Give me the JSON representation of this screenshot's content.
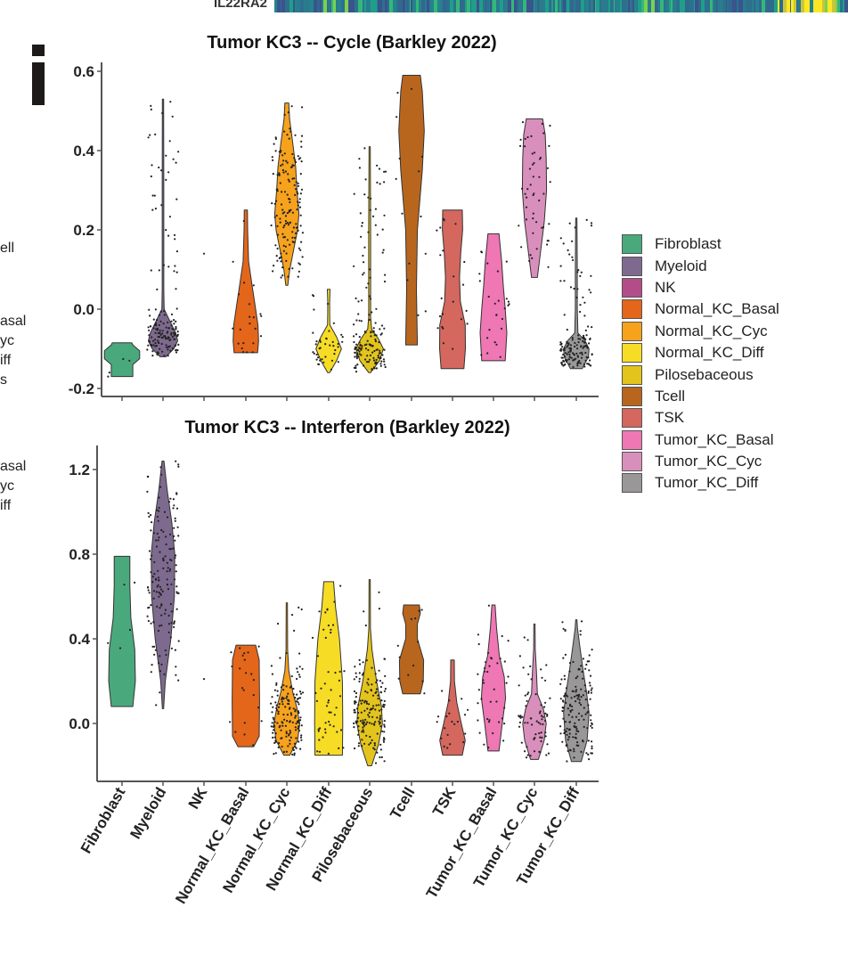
{
  "panel_label": "i",
  "heatmap_strip": {
    "row_label": "IL22RA2"
  },
  "left_cutoff_labels": [
    "ell",
    "asal",
    "yc",
    "iff",
    "s",
    "asal",
    "yc",
    "iff"
  ],
  "legend": {
    "items": [
      {
        "label": "Fibroblast",
        "color": "#4aa97c"
      },
      {
        "label": "Myeloid",
        "color": "#7e6a8e"
      },
      {
        "label": "NK",
        "color": "#b24d8a"
      },
      {
        "label": "Normal_KC_Basal",
        "color": "#e4661a"
      },
      {
        "label": "Normal_KC_Cyc",
        "color": "#f7a21c"
      },
      {
        "label": "Normal_KC_Diff",
        "color": "#f7dc25"
      },
      {
        "label": "Pilosebaceous",
        "color": "#e3c41c"
      },
      {
        "label": "Tcell",
        "color": "#b8661e"
      },
      {
        "label": "TSK",
        "color": "#d4675e"
      },
      {
        "label": "Tumor_KC_Basal",
        "color": "#ee77b4"
      },
      {
        "label": "Tumor_KC_Cyc",
        "color": "#d98fbb"
      },
      {
        "label": "Tumor_KC_Diff",
        "color": "#999797"
      }
    ]
  },
  "chart_data": [
    {
      "type": "violin",
      "title": "Tumor KC3 -- Cycle (Barkley 2022)",
      "xlabel": "",
      "ylabel": "",
      "ylim": [
        -0.21,
        0.63
      ],
      "yticks": [
        -0.2,
        0.0,
        0.2,
        0.4,
        0.6
      ],
      "ytick_labels": [
        "-0.2",
        "0.0",
        "0.2",
        "0.4",
        "0.6"
      ],
      "categories": [
        "Fibroblast",
        "Myeloid",
        "NK",
        "Normal_KC_Basal",
        "Normal_KC_Cyc",
        "Normal_KC_Diff",
        "Pilosebaceous",
        "Tcell",
        "TSK",
        "Tumor_KC_Basal",
        "Tumor_KC_Cyc",
        "Tumor_KC_Diff"
      ],
      "series": [
        {
          "name": "Fibroblast",
          "min": -0.17,
          "max": -0.085,
          "n_points": 4,
          "profile": [
            [
              -0.17,
              0.55
            ],
            [
              -0.14,
              0.55
            ],
            [
              -0.125,
              0.9
            ],
            [
              -0.105,
              0.9
            ],
            [
              -0.09,
              0.55
            ],
            [
              -0.085,
              0.5
            ]
          ]
        },
        {
          "name": "Myeloid",
          "min": -0.12,
          "max": 0.53,
          "n_points": 300,
          "profile": [
            [
              -0.12,
              0.15
            ],
            [
              -0.1,
              0.55
            ],
            [
              -0.08,
              0.75
            ],
            [
              -0.06,
              0.65
            ],
            [
              -0.03,
              0.35
            ],
            [
              0.0,
              0.06
            ],
            [
              0.05,
              0.04
            ],
            [
              0.3,
              0.04
            ],
            [
              0.53,
              0.03
            ]
          ]
        },
        {
          "name": "NK",
          "min": 0.14,
          "max": 0.14,
          "n_points": 1,
          "profile": []
        },
        {
          "name": "Normal_KC_Basal",
          "min": -0.11,
          "max": 0.25,
          "n_points": 22,
          "profile": [
            [
              -0.11,
              0.6
            ],
            [
              -0.08,
              0.65
            ],
            [
              -0.04,
              0.62
            ],
            [
              0.0,
              0.5
            ],
            [
              0.06,
              0.32
            ],
            [
              0.12,
              0.14
            ],
            [
              0.2,
              0.09
            ],
            [
              0.25,
              0.08
            ]
          ]
        },
        {
          "name": "Normal_KC_Cyc",
          "min": 0.06,
          "max": 0.52,
          "n_points": 280,
          "profile": [
            [
              0.06,
              0.05
            ],
            [
              0.1,
              0.15
            ],
            [
              0.15,
              0.35
            ],
            [
              0.2,
              0.55
            ],
            [
              0.24,
              0.62
            ],
            [
              0.3,
              0.52
            ],
            [
              0.36,
              0.45
            ],
            [
              0.42,
              0.3
            ],
            [
              0.48,
              0.14
            ],
            [
              0.52,
              0.1
            ]
          ]
        },
        {
          "name": "Normal_KC_Diff",
          "min": -0.16,
          "max": 0.05,
          "n_points": 40,
          "profile": [
            [
              -0.16,
              0.05
            ],
            [
              -0.13,
              0.4
            ],
            [
              -0.1,
              0.65
            ],
            [
              -0.07,
              0.4
            ],
            [
              -0.04,
              0.06
            ],
            [
              -0.01,
              0.05
            ],
            [
              0.02,
              0.05
            ],
            [
              0.05,
              0.07
            ]
          ]
        },
        {
          "name": "Pilosebaceous",
          "min": -0.16,
          "max": 0.41,
          "n_points": 250,
          "profile": [
            [
              -0.16,
              0.05
            ],
            [
              -0.13,
              0.5
            ],
            [
              -0.1,
              0.7
            ],
            [
              -0.075,
              0.45
            ],
            [
              -0.05,
              0.1
            ],
            [
              -0.02,
              0.05
            ],
            [
              0.2,
              0.05
            ],
            [
              0.41,
              0.03
            ]
          ]
        },
        {
          "name": "Tcell",
          "min": -0.09,
          "max": 0.59,
          "n_points": 14,
          "profile": [
            [
              -0.09,
              0.3
            ],
            [
              0.05,
              0.25
            ],
            [
              0.2,
              0.3
            ],
            [
              0.35,
              0.55
            ],
            [
              0.45,
              0.65
            ],
            [
              0.55,
              0.55
            ],
            [
              0.59,
              0.45
            ]
          ]
        },
        {
          "name": "TSK",
          "min": -0.15,
          "max": 0.25,
          "n_points": 22,
          "profile": [
            [
              -0.15,
              0.58
            ],
            [
              -0.1,
              0.66
            ],
            [
              -0.04,
              0.65
            ],
            [
              0.02,
              0.4
            ],
            [
              0.08,
              0.36
            ],
            [
              0.14,
              0.42
            ],
            [
              0.2,
              0.52
            ],
            [
              0.25,
              0.5
            ]
          ]
        },
        {
          "name": "Tumor_KC_Basal",
          "min": -0.13,
          "max": 0.19,
          "n_points": 26,
          "profile": [
            [
              -0.13,
              0.6
            ],
            [
              -0.06,
              0.68
            ],
            [
              0.0,
              0.6
            ],
            [
              0.06,
              0.5
            ],
            [
              0.12,
              0.42
            ],
            [
              0.19,
              0.28
            ]
          ]
        },
        {
          "name": "Tumor_KC_Cyc",
          "min": 0.08,
          "max": 0.48,
          "n_points": 50,
          "profile": [
            [
              0.08,
              0.15
            ],
            [
              0.14,
              0.3
            ],
            [
              0.22,
              0.5
            ],
            [
              0.3,
              0.62
            ],
            [
              0.38,
              0.6
            ],
            [
              0.44,
              0.55
            ],
            [
              0.48,
              0.42
            ]
          ]
        },
        {
          "name": "Tumor_KC_Diff",
          "min": -0.15,
          "max": 0.23,
          "n_points": 150,
          "profile": [
            [
              -0.15,
              0.3
            ],
            [
              -0.12,
              0.62
            ],
            [
              -0.1,
              0.65
            ],
            [
              -0.08,
              0.45
            ],
            [
              -0.06,
              0.08
            ],
            [
              0.0,
              0.05
            ],
            [
              0.1,
              0.05
            ],
            [
              0.23,
              0.03
            ]
          ]
        }
      ]
    },
    {
      "type": "violin",
      "title": "Tumor KC3 -- Interferon (Barkley 2022)",
      "xlabel": "",
      "ylabel": "",
      "ylim": [
        -0.25,
        1.3
      ],
      "yticks": [
        0.0,
        0.4,
        0.8,
        1.2
      ],
      "ytick_labels": [
        "0.0",
        "0.4",
        "0.8",
        "1.2"
      ],
      "categories": [
        "Fibroblast",
        "Myeloid",
        "NK",
        "Normal_KC_Basal",
        "Normal_KC_Cyc",
        "Normal_KC_Diff",
        "Pilosebaceous",
        "Tcell",
        "TSK",
        "Tumor_KC_Basal",
        "Tumor_KC_Cyc",
        "Tumor_KC_Diff"
      ],
      "series": [
        {
          "name": "Fibroblast",
          "min": 0.08,
          "max": 0.79,
          "n_points": 5,
          "profile": [
            [
              0.08,
              0.55
            ],
            [
              0.2,
              0.68
            ],
            [
              0.35,
              0.65
            ],
            [
              0.5,
              0.45
            ],
            [
              0.65,
              0.4
            ],
            [
              0.79,
              0.4
            ]
          ]
        },
        {
          "name": "Myeloid",
          "min": 0.07,
          "max": 1.24,
          "n_points": 300,
          "profile": [
            [
              0.07,
              0.03
            ],
            [
              0.2,
              0.12
            ],
            [
              0.4,
              0.4
            ],
            [
              0.6,
              0.58
            ],
            [
              0.8,
              0.6
            ],
            [
              0.95,
              0.45
            ],
            [
              1.1,
              0.22
            ],
            [
              1.24,
              0.05
            ]
          ]
        },
        {
          "name": "NK",
          "min": 0.21,
          "max": 0.21,
          "n_points": 1,
          "profile": []
        },
        {
          "name": "Normal_KC_Basal",
          "min": -0.11,
          "max": 0.37,
          "n_points": 22,
          "profile": [
            [
              -0.11,
              0.4
            ],
            [
              -0.06,
              0.68
            ],
            [
              0.1,
              0.7
            ],
            [
              0.3,
              0.68
            ],
            [
              0.37,
              0.5
            ]
          ]
        },
        {
          "name": "Normal_KC_Cyc",
          "min": -0.15,
          "max": 0.57,
          "n_points": 250,
          "profile": [
            [
              -0.15,
              0.15
            ],
            [
              -0.08,
              0.55
            ],
            [
              0.0,
              0.66
            ],
            [
              0.08,
              0.5
            ],
            [
              0.15,
              0.3
            ],
            [
              0.25,
              0.1
            ],
            [
              0.35,
              0.04
            ],
            [
              0.57,
              0.03
            ]
          ]
        },
        {
          "name": "Normal_KC_Diff",
          "min": -0.15,
          "max": 0.67,
          "n_points": 50,
          "profile": [
            [
              -0.15,
              0.7
            ],
            [
              0.0,
              0.72
            ],
            [
              0.2,
              0.7
            ],
            [
              0.4,
              0.55
            ],
            [
              0.55,
              0.35
            ],
            [
              0.67,
              0.25
            ]
          ]
        },
        {
          "name": "Pilosebaceous",
          "min": -0.2,
          "max": 0.68,
          "n_points": 200,
          "profile": [
            [
              -0.2,
              0.1
            ],
            [
              -0.1,
              0.45
            ],
            [
              0.0,
              0.65
            ],
            [
              0.08,
              0.6
            ],
            [
              0.2,
              0.35
            ],
            [
              0.35,
              0.12
            ],
            [
              0.45,
              0.04
            ],
            [
              0.68,
              0.03
            ]
          ]
        },
        {
          "name": "Tcell",
          "min": 0.14,
          "max": 0.56,
          "n_points": 12,
          "profile": [
            [
              0.14,
              0.45
            ],
            [
              0.2,
              0.6
            ],
            [
              0.3,
              0.62
            ],
            [
              0.4,
              0.3
            ],
            [
              0.47,
              0.3
            ],
            [
              0.52,
              0.45
            ],
            [
              0.56,
              0.4
            ]
          ]
        },
        {
          "name": "TSK",
          "min": -0.15,
          "max": 0.3,
          "n_points": 20,
          "profile": [
            [
              -0.15,
              0.5
            ],
            [
              -0.08,
              0.65
            ],
            [
              0.0,
              0.45
            ],
            [
              0.1,
              0.22
            ],
            [
              0.2,
              0.1
            ],
            [
              0.3,
              0.09
            ]
          ]
        },
        {
          "name": "Tumor_KC_Basal",
          "min": -0.13,
          "max": 0.56,
          "n_points": 40,
          "profile": [
            [
              -0.13,
              0.28
            ],
            [
              0.0,
              0.45
            ],
            [
              0.12,
              0.62
            ],
            [
              0.22,
              0.55
            ],
            [
              0.32,
              0.3
            ],
            [
              0.45,
              0.16
            ],
            [
              0.56,
              0.08
            ]
          ]
        },
        {
          "name": "Tumor_KC_Cyc",
          "min": -0.17,
          "max": 0.47,
          "n_points": 70,
          "profile": [
            [
              -0.17,
              0.2
            ],
            [
              -0.08,
              0.5
            ],
            [
              0.0,
              0.6
            ],
            [
              0.07,
              0.45
            ],
            [
              0.14,
              0.15
            ],
            [
              0.25,
              0.1
            ],
            [
              0.35,
              0.04
            ],
            [
              0.47,
              0.03
            ]
          ]
        },
        {
          "name": "Tumor_KC_Diff",
          "min": -0.18,
          "max": 0.49,
          "n_points": 160,
          "profile": [
            [
              -0.18,
              0.25
            ],
            [
              -0.08,
              0.55
            ],
            [
              0.05,
              0.65
            ],
            [
              0.15,
              0.52
            ],
            [
              0.25,
              0.35
            ],
            [
              0.35,
              0.2
            ],
            [
              0.45,
              0.06
            ],
            [
              0.49,
              0.03
            ]
          ]
        }
      ]
    }
  ]
}
